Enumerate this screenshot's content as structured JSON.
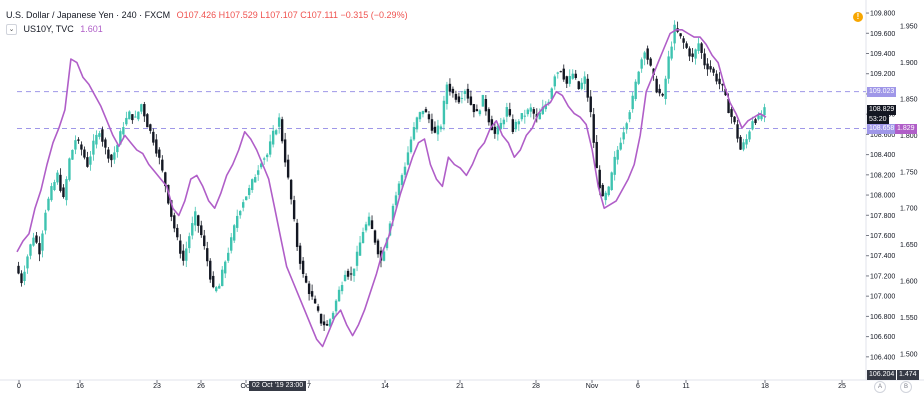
{
  "header": {
    "title": "U.S. Dollar / Japanese Yen · 240 · FXCM",
    "open": "O107.426",
    "high": "H107.529",
    "low": "L107.107",
    "close": "C107.111",
    "change": "−0.315 (−0.29%)"
  },
  "indicator": {
    "name": "US10Y, TVC",
    "value": "1.601"
  },
  "colors": {
    "up": "#3ec3b0",
    "down": "#131722",
    "yield": "#b05ec8",
    "hline": "#9f97e8"
  },
  "chart_data": {
    "type": "candlestick",
    "y_left_label": "",
    "y_price_ticks": [
      "109.800",
      "109.600",
      "109.400",
      "109.200",
      "109.000",
      "108.800",
      "108.600",
      "108.400",
      "108.200",
      "108.000",
      "107.800",
      "107.600",
      "107.400",
      "107.200",
      "107.000",
      "106.800",
      "106.600",
      "106.400"
    ],
    "y_yield_ticks": [
      "1.950",
      "1.900",
      "1.850",
      "1.800",
      "1.750",
      "1.700",
      "1.650",
      "1.600",
      "1.550",
      "1.500"
    ],
    "x_ticks": [
      "0",
      "16",
      "23",
      "26",
      "Oct",
      "7",
      "14",
      "21",
      "28",
      "Nov",
      "6",
      "11",
      "18",
      "25"
    ],
    "price_range": [
      106.25,
      109.85
    ],
    "yield_range": [
      1.475,
      1.975
    ],
    "price_path": [
      107.3,
      107.15,
      107.4,
      107.6,
      107.45,
      107.85,
      108.05,
      108.2,
      107.95,
      108.35,
      108.55,
      108.45,
      108.3,
      108.5,
      108.65,
      108.45,
      108.35,
      108.5,
      108.7,
      108.8,
      108.75,
      108.9,
      108.7,
      108.55,
      108.35,
      108.1,
      107.8,
      107.55,
      107.35,
      107.6,
      107.8,
      107.6,
      107.35,
      107.05,
      107.1,
      107.35,
      107.55,
      107.8,
      107.95,
      108.05,
      108.2,
      108.35,
      108.4,
      108.6,
      108.75,
      108.35,
      107.95,
      107.5,
      107.2,
      107.05,
      106.9,
      106.75,
      106.7,
      106.85,
      107.05,
      107.25,
      107.2,
      107.4,
      107.65,
      107.75,
      107.55,
      107.35,
      107.6,
      107.9,
      108.1,
      108.3,
      108.55,
      108.75,
      108.85,
      108.75,
      108.6,
      108.7,
      109.1,
      109.0,
      108.95,
      109.05,
      108.9,
      108.8,
      108.95,
      108.75,
      108.6,
      108.7,
      108.85,
      108.65,
      108.75,
      108.8,
      108.85,
      108.75,
      108.85,
      108.95,
      109.2,
      109.25,
      109.1,
      109.2,
      109.05,
      109.15,
      108.8,
      108.25,
      107.95,
      108.05,
      108.35,
      108.55,
      108.75,
      108.95,
      109.25,
      109.45,
      109.25,
      109.05,
      108.95,
      109.35,
      109.65,
      109.55,
      109.45,
      109.35,
      109.5,
      109.3,
      109.25,
      109.15,
      109.05,
      108.85,
      108.7,
      108.45,
      108.55,
      108.75,
      108.75,
      108.83
    ],
    "yield_path": [
      1.64,
      1.655,
      1.665,
      1.7,
      1.725,
      1.76,
      1.79,
      1.81,
      1.835,
      1.905,
      1.9,
      1.88,
      1.87,
      1.855,
      1.84,
      1.82,
      1.8,
      1.785,
      1.8,
      1.79,
      1.78,
      1.775,
      1.76,
      1.75,
      1.74,
      1.73,
      1.7,
      1.69,
      1.71,
      1.74,
      1.745,
      1.73,
      1.71,
      1.7,
      1.72,
      1.745,
      1.76,
      1.78,
      1.805,
      1.795,
      1.78,
      1.76,
      1.74,
      1.7,
      1.66,
      1.62,
      1.6,
      1.58,
      1.56,
      1.54,
      1.52,
      1.51,
      1.53,
      1.55,
      1.56,
      1.54,
      1.525,
      1.54,
      1.56,
      1.585,
      1.61,
      1.64,
      1.66,
      1.69,
      1.72,
      1.745,
      1.77,
      1.79,
      1.795,
      1.76,
      1.74,
      1.73,
      1.77,
      1.76,
      1.755,
      1.745,
      1.76,
      1.78,
      1.79,
      1.81,
      1.82,
      1.8,
      1.79,
      1.77,
      1.78,
      1.8,
      1.81,
      1.83,
      1.84,
      1.845,
      1.86,
      1.855,
      1.84,
      1.83,
      1.825,
      1.815,
      1.78,
      1.73,
      1.7,
      1.705,
      1.71,
      1.725,
      1.74,
      1.76,
      1.8,
      1.86,
      1.88,
      1.9,
      1.92,
      1.94,
      1.945,
      1.945,
      1.94,
      1.935,
      1.935,
      1.925,
      1.91,
      1.9,
      1.87,
      1.845,
      1.83,
      1.81,
      1.82,
      1.825,
      1.83,
      1.825
    ],
    "hlines": [
      109.023,
      108.658
    ],
    "current_price": "108.829",
    "countdown": "53:20",
    "level_tags": {
      "upper": "109.023",
      "lower": "108.658",
      "yield_current": "1.829",
      "bottom_price": "106.204",
      "bottom_yield": "1.474"
    },
    "crosshair_x_label": "02 Oct '19   23:00"
  }
}
